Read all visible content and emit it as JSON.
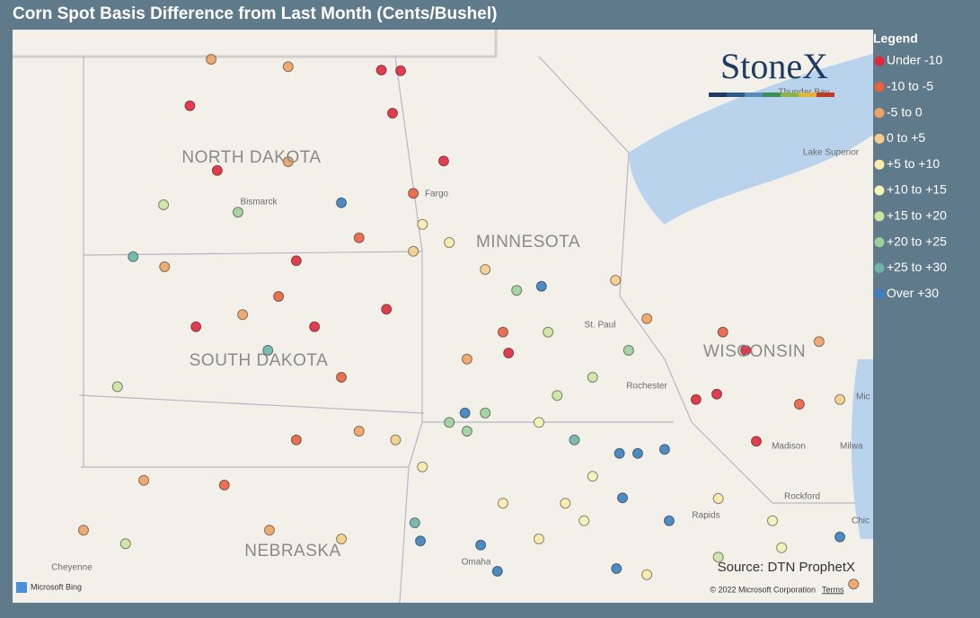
{
  "title": "Corn Spot Basis Difference from Last Month (Cents/Bushel)",
  "legend": {
    "title": "Legend",
    "items": [
      {
        "label": "Under -10",
        "color": "#e0283c",
        "min": null
      },
      {
        "label": "-10 to -5",
        "color": "#e8623f",
        "min": -10
      },
      {
        "label": "-5 to 0",
        "color": "#efa264",
        "min": -5
      },
      {
        "label": "0 to +5",
        "color": "#f6cd8b",
        "min": 0
      },
      {
        "label": "+5 to +10",
        "color": "#faebad",
        "min": 5
      },
      {
        "label": "+10 to +15",
        "color": "#f2f5b6",
        "min": 10
      },
      {
        "label": "+15 to +20",
        "color": "#cbe5a0",
        "min": 15
      },
      {
        "label": "+20 to +25",
        "color": "#9cd29a",
        "min": 20
      },
      {
        "label": "+25 to +30",
        "color": "#6cb5ab",
        "min": 25
      },
      {
        "label": "Over +30",
        "color": "#3a7fc0",
        "min": 30
      }
    ]
  },
  "logo": "StoneX",
  "source": "Source: DTN ProphetX",
  "copyright": "© 2022 Microsoft Corporation",
  "terms": "Terms",
  "bing": "Microsoft Bing",
  "places": {
    "nd": "NORTH DAKOTA",
    "sd": "SOUTH DAKOTA",
    "ne": "NEBRASKA",
    "mn": "MINNESOTA",
    "wi": "WISCONSIN",
    "bismarck": "Bismarck",
    "fargo": "Fargo",
    "superior": "Lake Superior",
    "thunder": "Thunder Bay",
    "stpaul": "St. Paul",
    "rochester": "Rochester",
    "madison": "Madison",
    "rockford": "Rockford",
    "milwaukee": "Milwa",
    "omaha": "Omaha",
    "rapids": "Rapids",
    "cheyenne": "Cheyenne",
    "chicago": "Chic",
    "mi": "Mic"
  },
  "points": [
    [
      -101.0,
      48.17,
      -12
    ],
    [
      -100.46,
      47.21,
      -12
    ],
    [
      -100.58,
      48.86,
      -3
    ],
    [
      -99.06,
      48.75,
      -3
    ],
    [
      -96.84,
      48.69,
      -12
    ],
    [
      -97.22,
      48.7,
      -12
    ],
    [
      -97.0,
      48.06,
      -12
    ],
    [
      -95.99,
      47.35,
      -12
    ],
    [
      -98.01,
      46.73,
      35
    ],
    [
      -101.52,
      46.7,
      17
    ],
    [
      -102.12,
      45.93,
      27
    ],
    [
      -100.88,
      44.89,
      -12
    ],
    [
      -99.46,
      44.54,
      25
    ],
    [
      -102.43,
      44.0,
      17
    ],
    [
      -98.54,
      44.89,
      -12
    ],
    [
      -97.12,
      45.15,
      -12
    ],
    [
      -101.5,
      45.78,
      -3
    ],
    [
      -99.06,
      47.34,
      -3
    ],
    [
      -97.66,
      46.21,
      -7
    ],
    [
      -96.59,
      46.01,
      2
    ],
    [
      -95.88,
      46.14,
      7
    ],
    [
      -94.55,
      45.43,
      22
    ],
    [
      -94.06,
      45.49,
      35
    ],
    [
      -92.6,
      45.58,
      3
    ],
    [
      -91.98,
      45.01,
      -3
    ],
    [
      -90.48,
      44.81,
      -7
    ],
    [
      -90.03,
      44.54,
      -12
    ],
    [
      -88.58,
      44.67,
      -3
    ],
    [
      -91.01,
      43.81,
      -12
    ],
    [
      -90.6,
      43.89,
      -12
    ],
    [
      -89.82,
      43.19,
      -12
    ],
    [
      -88.17,
      43.81,
      3
    ],
    [
      -88.97,
      43.74,
      -7
    ],
    [
      -90.57,
      42.34,
      7
    ],
    [
      -89.5,
      42.01,
      12
    ],
    [
      -88.17,
      41.77,
      35
    ],
    [
      -92.34,
      44.54,
      22
    ],
    [
      -93.05,
      44.14,
      17
    ],
    [
      -93.75,
      43.87,
      17
    ],
    [
      -94.82,
      44.81,
      -7
    ],
    [
      -95.53,
      44.41,
      -3
    ],
    [
      -95.88,
      43.47,
      22
    ],
    [
      -95.53,
      43.34,
      22
    ],
    [
      -95.17,
      43.61,
      22
    ],
    [
      -95.57,
      43.61,
      30
    ],
    [
      -94.11,
      43.47,
      12
    ],
    [
      -93.41,
      43.21,
      27
    ],
    [
      -92.52,
      43.01,
      35
    ],
    [
      -92.16,
      43.01,
      35
    ],
    [
      -91.63,
      43.07,
      35
    ],
    [
      -91.54,
      42.01,
      35
    ],
    [
      -92.46,
      42.35,
      32
    ],
    [
      -93.05,
      42.67,
      12
    ],
    [
      -93.59,
      42.27,
      7
    ],
    [
      -94.82,
      42.27,
      7
    ],
    [
      -96.41,
      42.81,
      7
    ],
    [
      -96.94,
      43.21,
      3
    ],
    [
      -97.66,
      43.34,
      -3
    ],
    [
      -98.01,
      44.14,
      -7
    ],
    [
      -98.9,
      43.21,
      -7
    ],
    [
      -100.32,
      42.54,
      -7
    ],
    [
      -101.91,
      42.61,
      -3
    ],
    [
      -103.1,
      41.87,
      -3
    ],
    [
      -102.27,
      41.67,
      17
    ],
    [
      -99.43,
      41.87,
      -3
    ],
    [
      -98.01,
      41.74,
      2
    ],
    [
      -96.56,
      41.98,
      27
    ],
    [
      -96.45,
      41.71,
      32
    ],
    [
      -95.26,
      41.65,
      32
    ],
    [
      -94.93,
      41.26,
      35
    ],
    [
      -94.11,
      41.74,
      7
    ],
    [
      -93.22,
      42.01,
      12
    ],
    [
      -92.58,
      41.3,
      32
    ],
    [
      -91.98,
      41.21,
      7
    ],
    [
      -90.57,
      41.47,
      17
    ],
    [
      -89.32,
      41.61,
      12
    ],
    [
      -87.9,
      41.07,
      -3
    ],
    [
      -99.96,
      45.07,
      -3
    ],
    [
      -99.25,
      45.34,
      -7
    ],
    [
      -100.05,
      46.59,
      22
    ],
    [
      -96.59,
      46.87,
      -7
    ],
    [
      -96.41,
      46.41,
      7
    ],
    [
      -95.17,
      45.74,
      3
    ],
    [
      -93.93,
      44.81,
      17
    ],
    [
      -94.71,
      44.5,
      -12
    ],
    [
      -98.9,
      45.87,
      -12
    ]
  ]
}
